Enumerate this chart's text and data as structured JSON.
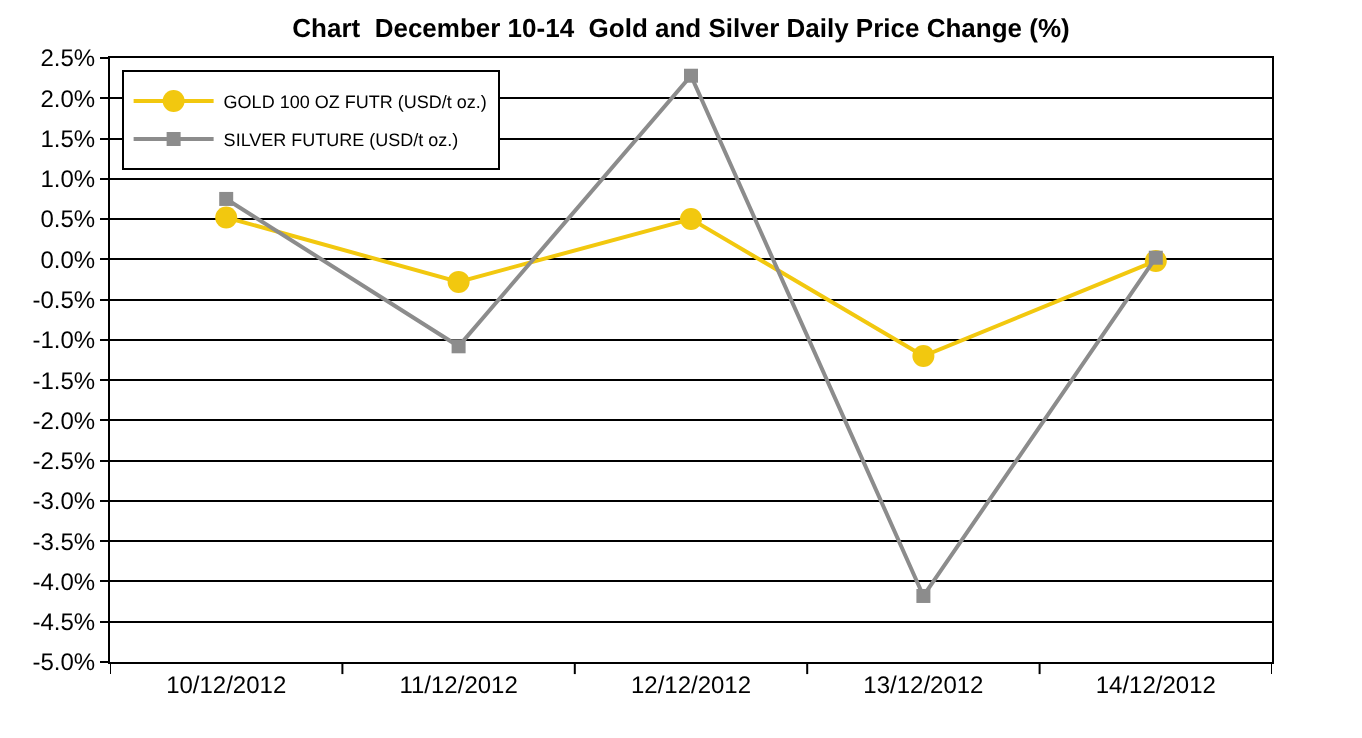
{
  "chart_data": {
    "type": "line",
    "title": "Chart  December 10-14  Gold and Silver Daily Price Change (%)",
    "categories": [
      "10/12/2012",
      "11/12/2012",
      "12/12/2012",
      "13/12/2012",
      "14/12/2012"
    ],
    "series": [
      {
        "name": "GOLD 100 OZ FUTR (USD/t oz.)",
        "color": "#f2c80f",
        "marker": "circle",
        "values": [
          0.52,
          -0.28,
          0.5,
          -1.2,
          -0.02
        ]
      },
      {
        "name": "SILVER FUTURE (USD/t oz.)",
        "color": "#8c8c8c",
        "marker": "square",
        "values": [
          0.75,
          -1.08,
          2.28,
          -4.18,
          0.02
        ]
      }
    ],
    "ylim": [
      -5,
      2.5
    ],
    "yticks": [
      {
        "value": -5,
        "label": "-5.0%"
      },
      {
        "value": -4.5,
        "label": "-4.5%"
      },
      {
        "value": -4,
        "label": "-4.0%"
      },
      {
        "value": -3.5,
        "label": "-3.5%"
      },
      {
        "value": -3,
        "label": "-3.0%"
      },
      {
        "value": -2.5,
        "label": "-2.5%"
      },
      {
        "value": -2,
        "label": "-2.0%"
      },
      {
        "value": -1.5,
        "label": "-1.5%"
      },
      {
        "value": -1,
        "label": "-1.0%"
      },
      {
        "value": -0.5,
        "label": "-0.5%"
      },
      {
        "value": 0,
        "label": "0.0%"
      },
      {
        "value": 0.5,
        "label": "0.5%"
      },
      {
        "value": 1,
        "label": "1.0%"
      },
      {
        "value": 1.5,
        "label": "1.5%"
      },
      {
        "value": 2,
        "label": "2.0%"
      },
      {
        "value": 2.5,
        "label": "2.5%"
      }
    ],
    "grid": "y",
    "legend": "top left",
    "line_style": "solid"
  }
}
